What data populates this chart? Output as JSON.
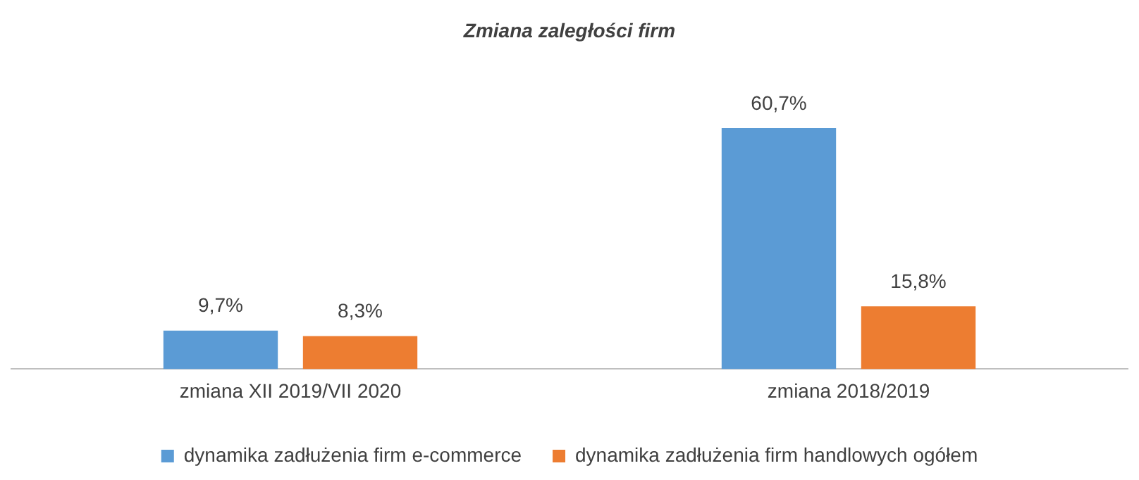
{
  "chart_data": {
    "type": "bar",
    "title": "Zmiana zaległości firm",
    "categories": [
      "zmiana XII 2019/VII 2020",
      "zmiana 2018/2019"
    ],
    "series": [
      {
        "name": "dynamika zadłużenia firm e-commerce",
        "color": "#5b9bd5",
        "values": [
          9.7,
          60.7
        ],
        "value_labels": [
          "9,7%",
          "60,7%"
        ]
      },
      {
        "name": "dynamika zadłużenia firm handlowych ogółem",
        "color": "#ed7d31",
        "values": [
          8.3,
          15.8
        ],
        "value_labels": [
          "8,3%",
          "15,8%"
        ]
      }
    ],
    "grid": false,
    "legend": "bottom",
    "tick_labels": "x"
  }
}
